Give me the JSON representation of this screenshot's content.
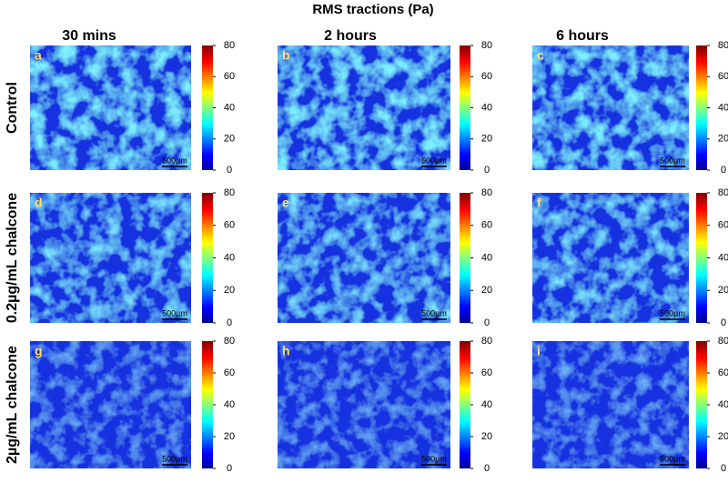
{
  "title": "RMS tractions (Pa)",
  "column_headers": [
    "30 mins",
    "2 hours",
    "6 hours"
  ],
  "row_labels": [
    "Control",
    "0.2µg/mL chalcone",
    "2µg/mL chalcone"
  ],
  "panels": [
    [
      "a",
      "b",
      "c"
    ],
    [
      "d",
      "e",
      "f"
    ],
    [
      "g",
      "h",
      "i"
    ]
  ],
  "scale_bar": "500µm",
  "colorbar": {
    "range": [
      0,
      80
    ],
    "ticks": [
      0,
      20,
      40,
      60,
      80
    ]
  }
}
